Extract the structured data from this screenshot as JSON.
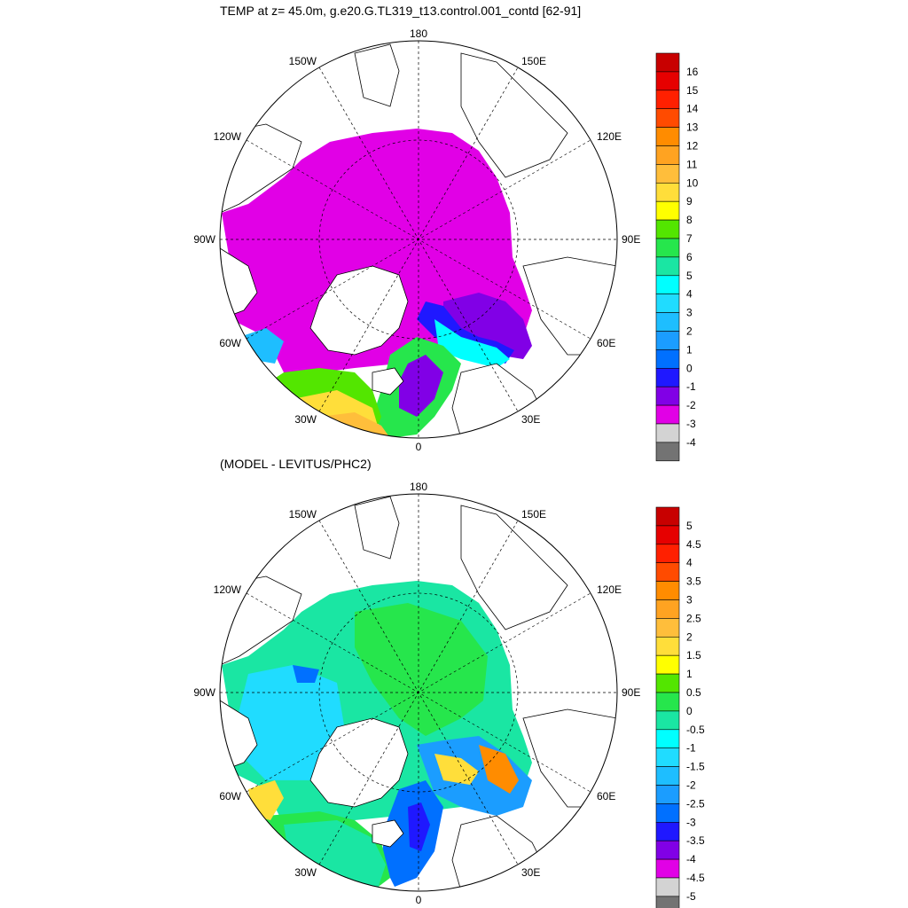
{
  "top": {
    "title": "TEMP at z=  45.0m, g.e20.G.TL319_t13.control.001_contd [62-91]",
    "colorbar_labels": [
      "16",
      "15",
      "14",
      "13",
      "12",
      "11",
      "10",
      "9",
      "8",
      "7",
      "6",
      "5",
      "4",
      "3",
      "2",
      "1",
      "0",
      "-1",
      "-2",
      "-3",
      "-4"
    ],
    "colors": [
      "#c80000",
      "#e60000",
      "#ff2000",
      "#ff4b00",
      "#ff8c00",
      "#ffa321",
      "#ffbe3b",
      "#ffde3a",
      "#ffff00",
      "#53e600",
      "#26e64c",
      "#1ae6a3",
      "#00ffff",
      "#20dcff",
      "#1ebeff",
      "#1b9dff",
      "#0070ff",
      "#1f18ff",
      "#8100e6",
      "#e100e6",
      "#d3d3d3",
      "#737373"
    ]
  },
  "bottom": {
    "title": "(MODEL - LEVITUS/PHC2)",
    "colorbar_labels": [
      "5",
      "4.5",
      "4",
      "3.5",
      "3",
      "2.5",
      "2",
      "1.5",
      "1",
      "0.5",
      "0",
      "-0.5",
      "-1",
      "-1.5",
      "-2",
      "-2.5",
      "-3",
      "-3.5",
      "-4",
      "-4.5",
      "-5"
    ],
    "colors": [
      "#c80000",
      "#e60000",
      "#ff2000",
      "#ff4b00",
      "#ff8c00",
      "#ffa321",
      "#ffbe3b",
      "#ffde3a",
      "#ffff00",
      "#53e600",
      "#26e64c",
      "#1ae6a3",
      "#00ffff",
      "#20dcff",
      "#1ebeff",
      "#1b9dff",
      "#0070ff",
      "#1f18ff",
      "#8100e6",
      "#e100e6",
      "#d3d3d3",
      "#737373"
    ]
  },
  "longitude_labels": {
    "top": "180",
    "bottom": "0",
    "left": "90W",
    "right": "90E",
    "upper_left_far": "150W",
    "upper_left_near": "120W",
    "lower_left_near": "60W",
    "lower_left_far": "30W",
    "upper_right_far": "150E",
    "upper_right_near": "120E",
    "lower_right_near": "60E",
    "lower_right_far": "30E"
  }
}
